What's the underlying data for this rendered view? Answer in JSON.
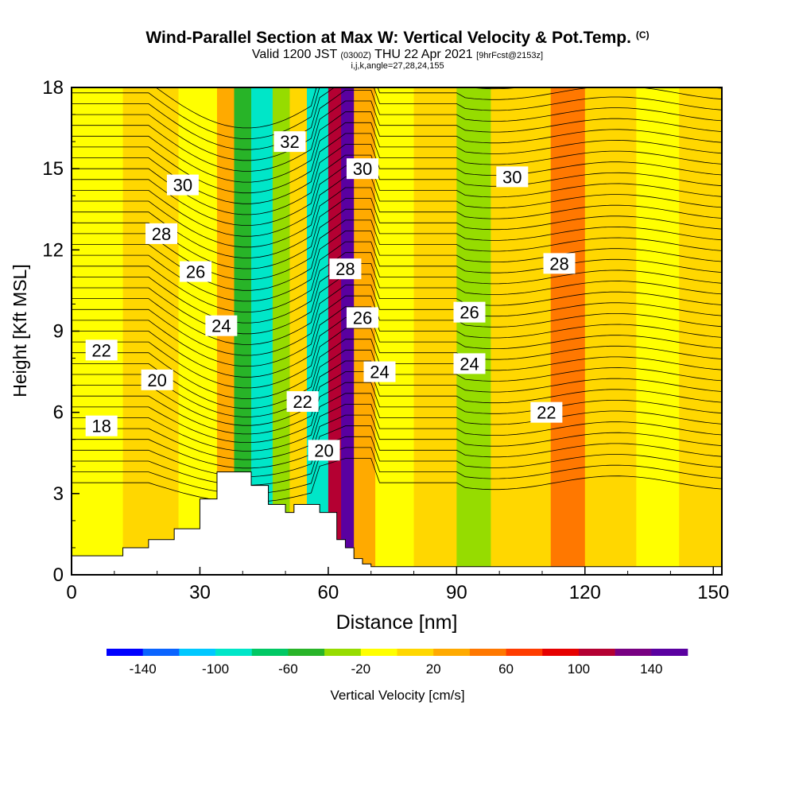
{
  "title": {
    "main": "Wind-Parallel Section at Max W: Vertical Velocity & Pot.Temp.",
    "units_tag": "(C)",
    "valid_prefix": "Valid 1200 JST",
    "valid_zulu": "(0300Z)",
    "valid_date": "THU 22 Apr 2021",
    "forecast_tag": "[9hrFcst@2153z]",
    "grid_info": "i,j,k,angle=27,28,24,155"
  },
  "chart_data": {
    "type": "heatmap",
    "xlabel": "Distance [nm]",
    "ylabel": "Height [Kft MSL]",
    "xlim": [
      0,
      152
    ],
    "ylim": [
      0,
      18
    ],
    "x_ticks": [
      0,
      30,
      60,
      90,
      120,
      150
    ],
    "y_ticks": [
      0,
      3,
      6,
      9,
      12,
      15,
      18
    ],
    "colorbar": {
      "label": "Vertical Velocity [cm/s]",
      "levels": [
        -160,
        -140,
        -120,
        -100,
        -80,
        -60,
        -40,
        -20,
        0,
        20,
        40,
        60,
        80,
        100,
        120,
        140,
        160
      ],
      "tick_labels": [
        "-140",
        "-100",
        "-60",
        "-20",
        "20",
        "60",
        "100",
        "140"
      ],
      "tick_values": [
        -140,
        -100,
        -60,
        -20,
        20,
        60,
        100,
        140
      ],
      "colors": [
        "#0000ff",
        "#0a64ff",
        "#00c8ff",
        "#00e6c8",
        "#00c864",
        "#28b428",
        "#96dc00",
        "#ffff00",
        "#ffd700",
        "#ffaa00",
        "#ff7800",
        "#ff3c00",
        "#e60000",
        "#b40032",
        "#780082",
        "#5a00a0"
      ]
    },
    "vertical_velocity_bands": [
      {
        "x": [
          0,
          12
        ],
        "w": -20
      },
      {
        "x": [
          12,
          25
        ],
        "w": 10
      },
      {
        "x": [
          25,
          34
        ],
        "w": -20
      },
      {
        "x": [
          34,
          38
        ],
        "w": 30
      },
      {
        "x": [
          38,
          42
        ],
        "w": -60
      },
      {
        "x": [
          42,
          47
        ],
        "w": -100
      },
      {
        "x": [
          47,
          51
        ],
        "w": -30
      },
      {
        "x": [
          51,
          55
        ],
        "w": 10
      },
      {
        "x": [
          55,
          60
        ],
        "w": -90
      },
      {
        "x": [
          60,
          63
        ],
        "w": 110
      },
      {
        "x": [
          63,
          66
        ],
        "w": 150
      },
      {
        "x": [
          66,
          71
        ],
        "w": 30
      },
      {
        "x": [
          71,
          80
        ],
        "w": -20
      },
      {
        "x": [
          80,
          90
        ],
        "w": 10
      },
      {
        "x": [
          90,
          98
        ],
        "w": -30
      },
      {
        "x": [
          98,
          112
        ],
        "w": 10
      },
      {
        "x": [
          112,
          120
        ],
        "w": 40
      },
      {
        "x": [
          120,
          132
        ],
        "w": 10
      },
      {
        "x": [
          132,
          142
        ],
        "w": -10
      },
      {
        "x": [
          142,
          152
        ],
        "w": 10
      }
    ],
    "terrain_profile": {
      "x": [
        0,
        6,
        12,
        18,
        24,
        30,
        34,
        38,
        42,
        46,
        50,
        52,
        56,
        58,
        62,
        64,
        66,
        68,
        70,
        72,
        152
      ],
      "height": [
        0.7,
        0.7,
        1.0,
        1.3,
        1.7,
        2.8,
        3.8,
        3.8,
        3.3,
        2.6,
        2.3,
        2.6,
        2.6,
        2.3,
        1.3,
        1.0,
        0.6,
        0.4,
        0.3,
        0.3,
        0.3
      ]
    },
    "isentrope_labels": [
      {
        "value": "18",
        "x": 7,
        "y": 5.5
      },
      {
        "value": "20",
        "x": 20,
        "y": 7.2
      },
      {
        "value": "22",
        "x": 7,
        "y": 8.3
      },
      {
        "value": "22",
        "x": 54,
        "y": 6.4
      },
      {
        "value": "22",
        "x": 111,
        "y": 6.0
      },
      {
        "value": "20",
        "x": 59,
        "y": 4.6
      },
      {
        "value": "24",
        "x": 35,
        "y": 9.2
      },
      {
        "value": "24",
        "x": 72,
        "y": 7.5
      },
      {
        "value": "24",
        "x": 93,
        "y": 7.8
      },
      {
        "value": "26",
        "x": 29,
        "y": 11.2
      },
      {
        "value": "26",
        "x": 68,
        "y": 9.5
      },
      {
        "value": "26",
        "x": 93,
        "y": 9.7
      },
      {
        "value": "28",
        "x": 21,
        "y": 12.6
      },
      {
        "value": "28",
        "x": 64,
        "y": 11.3
      },
      {
        "value": "28",
        "x": 114,
        "y": 11.5
      },
      {
        "value": "30",
        "x": 26,
        "y": 14.4
      },
      {
        "value": "30",
        "x": 68,
        "y": 15.0
      },
      {
        "value": "30",
        "x": 103,
        "y": 14.7
      },
      {
        "value": "32",
        "x": 51,
        "y": 16.0
      }
    ]
  }
}
